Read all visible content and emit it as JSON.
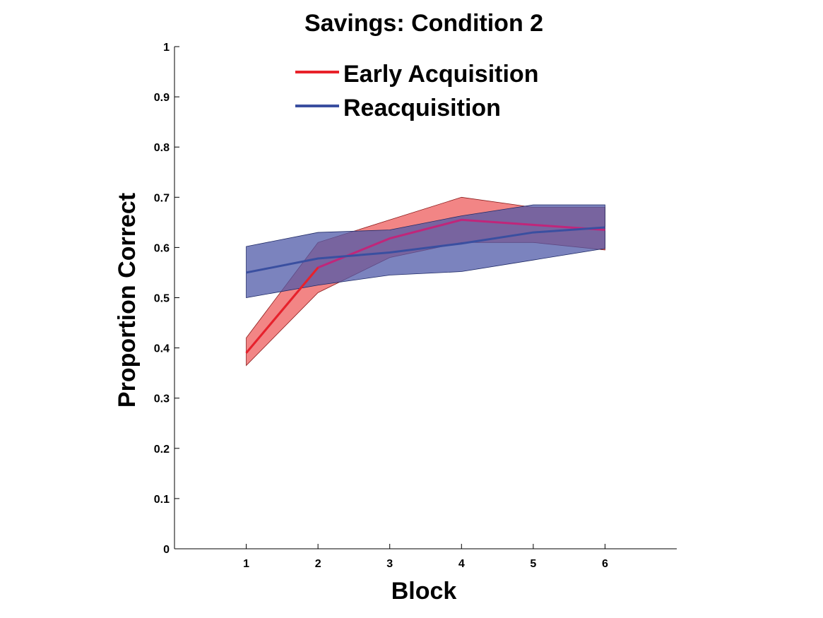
{
  "chart_data": {
    "type": "line",
    "title": "Savings: Condition 2",
    "xlabel": "Block",
    "ylabel": "Proportion Correct",
    "xlim": [
      0,
      7
    ],
    "ylim": [
      0,
      1
    ],
    "xticks": [
      "1",
      "2",
      "3",
      "4",
      "5",
      "6"
    ],
    "yticks": [
      "0",
      "0.1",
      "0.2",
      "0.3",
      "0.4",
      "0.5",
      "0.6",
      "0.7",
      "0.8",
      "0.9",
      "1"
    ],
    "x": [
      1,
      2,
      3,
      4,
      5,
      6
    ],
    "legend_position": "top",
    "grid": false,
    "series": [
      {
        "name": "Early Acquisition",
        "color": "#e8222a",
        "fill_color": "#f07070",
        "values": [
          0.39,
          0.56,
          0.618,
          0.655,
          0.645,
          0.635
        ],
        "upper": [
          0.42,
          0.61,
          0.655,
          0.7,
          0.68,
          0.68
        ],
        "lower": [
          0.365,
          0.51,
          0.58,
          0.61,
          0.61,
          0.595
        ]
      },
      {
        "name": "Reacquisition",
        "color": "#3a4fa0",
        "fill_color": "#4f5aa8",
        "values": [
          0.55,
          0.578,
          0.59,
          0.608,
          0.63,
          0.64
        ],
        "upper": [
          0.602,
          0.63,
          0.635,
          0.663,
          0.685,
          0.685
        ],
        "lower": [
          0.5,
          0.525,
          0.545,
          0.552,
          0.575,
          0.598
        ]
      }
    ]
  }
}
